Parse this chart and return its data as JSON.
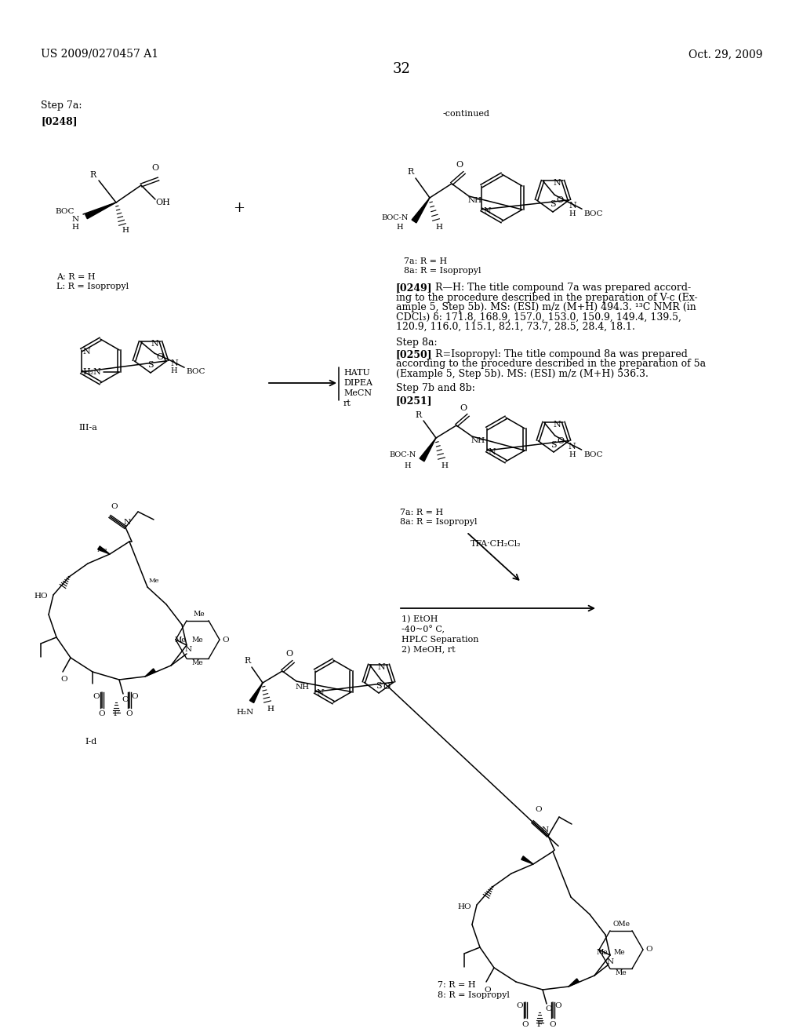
{
  "background_color": "#ffffff",
  "header_left": "US 2009/0270457 A1",
  "header_right": "Oct. 29, 2009",
  "page_number": "32",
  "step7a": "Step 7a:",
  "p0248": "[0248]",
  "continued": "-continued",
  "label_A": "A: R = H",
  "label_L": "L: R = Isopropyl",
  "label_IIIa": "III-a",
  "label_7a_1": "7a: R = H",
  "label_8a_1": "8a: R = Isopropyl",
  "reagents1": [
    "HATU",
    "DIPEA",
    "MeCN",
    "rt"
  ],
  "p0249_bold": "[0249]",
  "p0249_text1": "   R—H: The title compound 7a was prepared accord-",
  "p0249_text2": "ing to the procedure described in the preparation of V-c (Ex-",
  "p0249_text3": "ample 5, Step 5b). MS: (ESI) m/z (M+H) 494.3. ¹³C NMR (in",
  "p0249_text4": "CDCl₃) δ: 171.8, 168.9, 157.0, 153.0, 150.9, 149.4, 139.5,",
  "p0249_text5": "120.9, 116.0, 115.1, 82.1, 73.7, 28.5, 28.4, 18.1.",
  "step8a": "Step 8a:",
  "p0250_bold": "[0250]",
  "p0250_text1": "   R=Isopropyl: The title compound 8a was prepared",
  "p0250_text2": "according to the procedure described in the preparation of 5a",
  "p0250_text3": "(Example 5, Step 5b). MS: (ESI) m/z (M+H) 536.3.",
  "step7b8b": "Step 7b and 8b:",
  "p0251_bold": "[0251]",
  "label_7a_2": "7a: R = H",
  "label_8a_2": "8a: R = Isopropyl",
  "tfa": "TFA·CH₂Cl₂",
  "reagents2_1": "1) EtOH",
  "reagents2_2": "-40~0° C,",
  "reagents2_3": "HPLC Separation",
  "reagents2_4": "2) MeOH, rt",
  "label_Id": "I-d",
  "label_7": "7: R = H",
  "label_8": "8: R = Isopropyl"
}
